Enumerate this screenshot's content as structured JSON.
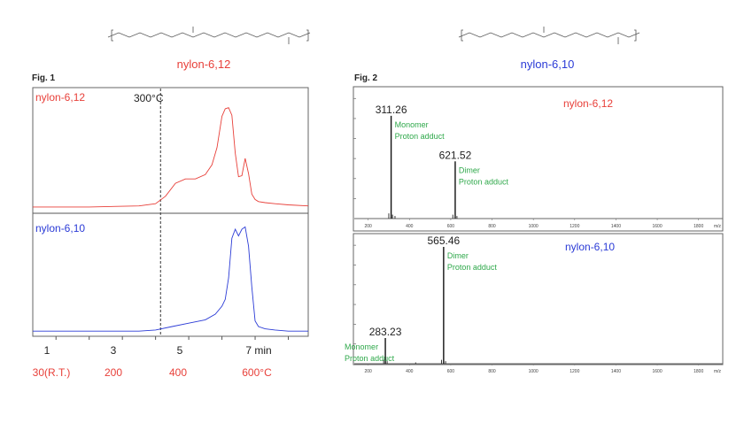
{
  "colors": {
    "red": "#e8403a",
    "blue": "#2b3bd6",
    "green": "#2ea84a",
    "black": "#222222"
  },
  "fig1": {
    "label": "Fig. 1",
    "structure_name": "nylon-6,12",
    "top_series": "nylon-6,12",
    "bottom_series": "nylon-6,10",
    "marker_label": "300°C",
    "x_ticks": [
      "1",
      "3",
      "5",
      "7 min"
    ],
    "temp_ticks": [
      "30(R.T.)",
      "200",
      "400",
      "600°C"
    ],
    "chart_data": {
      "type": "line",
      "xlabel": "min",
      "xlim": [
        0.3,
        8.6
      ],
      "marker_x": 4.15,
      "series": [
        {
          "name": "nylon-6,12",
          "color": "#e8403a",
          "baseline": 0.05,
          "x": [
            0.3,
            2.0,
            3.5,
            4.0,
            4.3,
            4.6,
            4.9,
            5.2,
            5.5,
            5.7,
            5.85,
            6.0,
            6.1,
            6.2,
            6.3,
            6.4,
            6.5,
            6.6,
            6.7,
            6.8,
            6.9,
            7.0,
            7.1,
            7.3,
            7.6,
            8.0,
            8.6
          ],
          "y": [
            0.05,
            0.05,
            0.06,
            0.08,
            0.15,
            0.27,
            0.31,
            0.31,
            0.35,
            0.44,
            0.6,
            0.89,
            0.96,
            0.97,
            0.9,
            0.55,
            0.33,
            0.34,
            0.5,
            0.36,
            0.17,
            0.12,
            0.1,
            0.09,
            0.08,
            0.07,
            0.06
          ]
        },
        {
          "name": "nylon-6,10",
          "color": "#2b3bd6",
          "baseline": 0.03,
          "x": [
            0.3,
            2.0,
            3.5,
            4.0,
            4.5,
            5.0,
            5.5,
            5.8,
            6.0,
            6.1,
            6.2,
            6.3,
            6.4,
            6.5,
            6.6,
            6.7,
            6.8,
            6.9,
            7.0,
            7.1,
            7.3,
            7.6,
            8.0,
            8.6
          ],
          "y": [
            0.03,
            0.03,
            0.03,
            0.04,
            0.07,
            0.1,
            0.13,
            0.18,
            0.25,
            0.31,
            0.5,
            0.85,
            0.93,
            0.87,
            0.93,
            0.95,
            0.78,
            0.42,
            0.12,
            0.07,
            0.05,
            0.04,
            0.03,
            0.03
          ]
        }
      ]
    }
  },
  "fig2": {
    "label": "Fig. 2",
    "structure_name": "nylon-6,10",
    "top_series": "nylon-6,12",
    "bottom_series": "nylon-6,10",
    "x_ticks": [
      "200",
      "400",
      "600",
      "800",
      "1000",
      "1200",
      "1400",
      "1600",
      "1800",
      "m/z"
    ],
    "chart_data": [
      {
        "type": "bar",
        "name": "nylon-6,12",
        "xlim": [
          150,
          1900
        ],
        "xlabel": "m/z",
        "peaks": [
          {
            "mz": 311.26,
            "label": "311.26",
            "rel": 0.79,
            "note1": "Monomer",
            "note2": "Proton adduct"
          },
          {
            "mz": 621.52,
            "label": "621.52",
            "rel": 0.44,
            "note1": "Dimer",
            "note2": "Proton adduct"
          }
        ],
        "minor": [
          [
            300,
            0.04
          ],
          [
            318,
            0.03
          ],
          [
            330,
            0.02
          ],
          [
            610,
            0.03
          ],
          [
            630,
            0.02
          ]
        ]
      },
      {
        "type": "bar",
        "name": "nylon-6,10",
        "xlim": [
          150,
          1900
        ],
        "xlabel": "m/z",
        "peaks": [
          {
            "mz": 283.23,
            "label": "283.23",
            "rel": 0.2,
            "note1": "Monomer",
            "note2": "Proton adduct"
          },
          {
            "mz": 565.46,
            "label": "565.46",
            "rel": 0.91,
            "note1": "Dimer",
            "note2": "Proton adduct"
          }
        ],
        "minor": [
          [
            275,
            0.03
          ],
          [
            292,
            0.02
          ],
          [
            430,
            0.01
          ],
          [
            555,
            0.03
          ],
          [
            575,
            0.02
          ]
        ]
      }
    ]
  }
}
